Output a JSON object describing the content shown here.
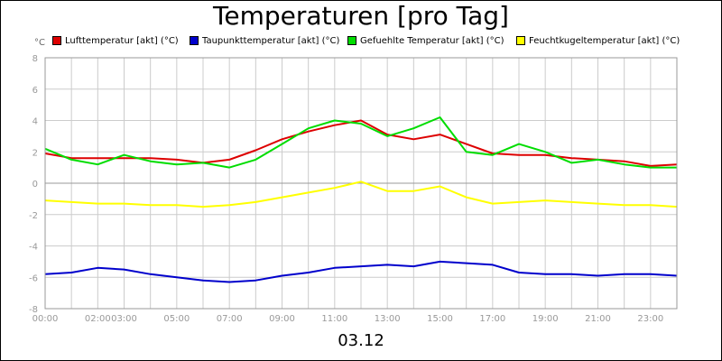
{
  "title": "Temperaturen [pro Tag]",
  "date_label": "03.12",
  "y_unit": "°C",
  "chart_data": {
    "type": "line",
    "title": "Temperaturen [pro Tag]",
    "xlabel": "03.12",
    "ylabel": "°C",
    "ylim": [
      -8,
      8
    ],
    "y_ticks": [
      8,
      6,
      4,
      2,
      0,
      -2,
      -4,
      -6,
      -8
    ],
    "x_range_hours": [
      0,
      24
    ],
    "x_tick_labels": [
      {
        "hour": 0,
        "label": "00:00"
      },
      {
        "hour": 2,
        "label": "02:00"
      },
      {
        "hour": 3,
        "label": "03:00"
      },
      {
        "hour": 5,
        "label": "05:00"
      },
      {
        "hour": 7,
        "label": "07:00"
      },
      {
        "hour": 9,
        "label": "09:00"
      },
      {
        "hour": 11,
        "label": "11:00"
      },
      {
        "hour": 13,
        "label": "13:00"
      },
      {
        "hour": 15,
        "label": "15:00"
      },
      {
        "hour": 17,
        "label": "17:00"
      },
      {
        "hour": 19,
        "label": "19:00"
      },
      {
        "hour": 21,
        "label": "21:00"
      },
      {
        "hour": 23,
        "label": "23:00"
      }
    ],
    "grid": true,
    "legend_position": "top",
    "x_hours": [
      0,
      1,
      2,
      3,
      4,
      5,
      6,
      7,
      8,
      9,
      10,
      11,
      12,
      13,
      14,
      15,
      16,
      17,
      18,
      19,
      20,
      21,
      22,
      23,
      24
    ],
    "series": [
      {
        "name": "Lufttemperatur [akt] (°C)",
        "color": "#dd0000",
        "values": [
          1.9,
          1.6,
          1.6,
          1.6,
          1.6,
          1.5,
          1.3,
          1.5,
          2.1,
          2.8,
          3.3,
          3.7,
          4.0,
          3.1,
          2.8,
          3.1,
          2.5,
          1.9,
          1.8,
          1.8,
          1.6,
          1.5,
          1.4,
          1.1,
          1.2
        ]
      },
      {
        "name": "Taupunkttemperatur [akt] (°C)",
        "color": "#0000cc",
        "values": [
          -5.8,
          -5.7,
          -5.4,
          -5.5,
          -5.8,
          -6.0,
          -6.2,
          -6.3,
          -6.2,
          -5.9,
          -5.7,
          -5.4,
          -5.3,
          -5.2,
          -5.3,
          -5.0,
          -5.1,
          -5.2,
          -5.7,
          -5.8,
          -5.8,
          -5.9,
          -5.8,
          -5.8,
          -5.9
        ]
      },
      {
        "name": "Gefuehlte Temperatur [akt] (°C)",
        "color": "#00dd00",
        "values": [
          2.2,
          1.5,
          1.2,
          1.8,
          1.4,
          1.2,
          1.3,
          1.0,
          1.5,
          2.5,
          3.5,
          4.0,
          3.8,
          3.0,
          3.5,
          4.2,
          2.0,
          1.8,
          2.5,
          2.0,
          1.3,
          1.5,
          1.2,
          1.0,
          1.0
        ]
      },
      {
        "name": "Feuchtkugeltemperatur [akt] (°C)",
        "color": "#ffff00",
        "values": [
          -1.1,
          -1.2,
          -1.3,
          -1.3,
          -1.4,
          -1.4,
          -1.5,
          -1.4,
          -1.2,
          -0.9,
          -0.6,
          -0.3,
          0.1,
          -0.5,
          -0.5,
          -0.2,
          -0.9,
          -1.3,
          -1.2,
          -1.1,
          -1.2,
          -1.3,
          -1.4,
          -1.4,
          -1.5
        ]
      }
    ]
  }
}
